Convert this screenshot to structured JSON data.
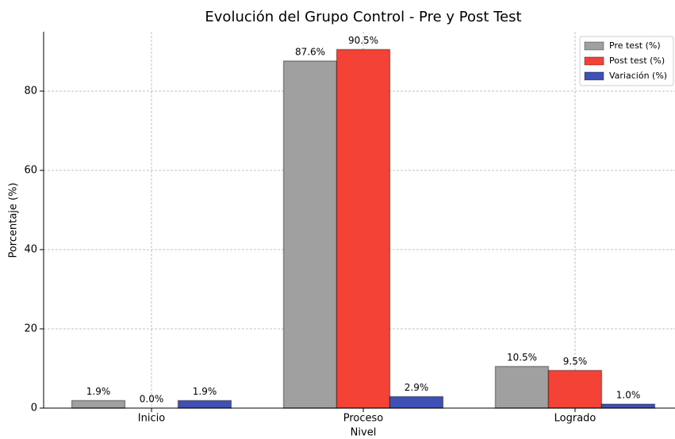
{
  "chart_data": {
    "type": "bar",
    "title": "Evolución del Grupo Control - Pre y Post Test",
    "x_label": "Nivel",
    "y_label": "Porcentaje (%)",
    "categories": [
      "Inicio",
      "Proceso",
      "Logrado"
    ],
    "series": [
      {
        "name": "Pre test (%)",
        "color": "#a0a0a0",
        "values": [
          1.9,
          87.6,
          10.5
        ],
        "value_labels": [
          "1.9%",
          "87.6%",
          "10.5%"
        ]
      },
      {
        "name": "Post test (%)",
        "color": "#f44336",
        "values": [
          0.0,
          90.5,
          9.5
        ],
        "value_labels": [
          "0.0%",
          "90.5%",
          "9.5%"
        ]
      },
      {
        "name": "Variación (%)",
        "color": "#3f51b5",
        "values": [
          1.9,
          2.9,
          1.0
        ],
        "value_labels": [
          "1.9%",
          "2.9%",
          "1.0%"
        ]
      }
    ],
    "ylim": [
      0,
      95
    ],
    "yticks": [
      0,
      20,
      40,
      60,
      80
    ],
    "grid": true,
    "legend": "upper right"
  }
}
